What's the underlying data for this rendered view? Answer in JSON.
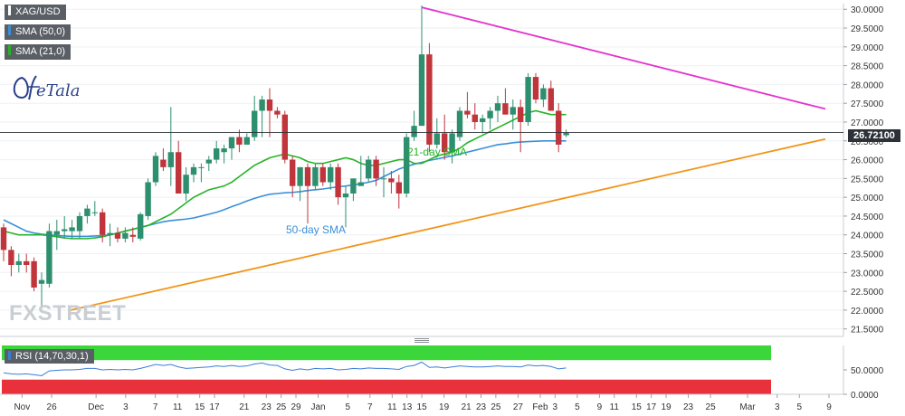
{
  "legend": {
    "symbol": "XAG/USD",
    "sma50": "SMA (50,0)",
    "sma21": "SMA (21,0)",
    "sma50_color": "#3b8fd8",
    "sma21_color": "#27b327",
    "symbol_color": "#ffffff"
  },
  "brand": {
    "logo": "FXStreet",
    "logo_partner": "OfeTala"
  },
  "watermark_text": "FXSTREET",
  "price_tag": "26.72100",
  "rsi_label": "RSI (14,70,30,1)",
  "colors": {
    "bull": "#2e8f6e",
    "bear": "#c0343b",
    "resistance": "#e333cf",
    "support": "#f29418",
    "rsi_line": "#3b7dd8",
    "rsi_overbought": "#3ad63a",
    "rsi_oversold": "#e8313a"
  },
  "chart_data": {
    "type": "candlestick",
    "symbol": "XAG/USD",
    "ylim": [
      21.3,
      30.15
    ],
    "y_ticks": [
      "30.0000",
      "29.5000",
      "29.0000",
      "28.5000",
      "28.0000",
      "27.5000",
      "27.0000",
      "26.5000",
      "26.0000",
      "25.5000",
      "25.0000",
      "24.5000",
      "24.0000",
      "23.5000",
      "23.0000",
      "22.5000",
      "22.0000",
      "21.5000"
    ],
    "x_labels": [
      "Nov",
      "26",
      "Dec",
      "3",
      "7",
      "11",
      "15",
      "17",
      "21",
      "23",
      "25",
      "29",
      "Jan",
      "5",
      "7",
      "11",
      "13",
      "15",
      "19",
      "21",
      "23",
      "25",
      "27",
      "Feb",
      "3",
      "5",
      "9",
      "11",
      "15",
      "17",
      "19",
      "23",
      "25",
      "Mar",
      "3",
      "5",
      "9"
    ],
    "current_price": 26.721,
    "candles": [
      {
        "o": 24.2,
        "h": 24.3,
        "l": 23.3,
        "c": 23.6
      },
      {
        "o": 23.6,
        "h": 23.7,
        "l": 22.9,
        "c": 23.2
      },
      {
        "o": 23.2,
        "h": 23.5,
        "l": 23.0,
        "c": 23.3
      },
      {
        "o": 23.3,
        "h": 23.5,
        "l": 23.0,
        "c": 23.2
      },
      {
        "o": 23.3,
        "h": 23.4,
        "l": 22.5,
        "c": 22.6
      },
      {
        "o": 22.7,
        "h": 23.0,
        "l": 22.0,
        "c": 22.8
      },
      {
        "o": 22.7,
        "h": 24.3,
        "l": 22.6,
        "c": 24.1
      },
      {
        "o": 24.0,
        "h": 24.4,
        "l": 23.6,
        "c": 24.1
      },
      {
        "o": 24.1,
        "h": 24.5,
        "l": 23.9,
        "c": 24.15
      },
      {
        "o": 24.1,
        "h": 24.4,
        "l": 23.9,
        "c": 24.2
      },
      {
        "o": 24.1,
        "h": 24.6,
        "l": 23.9,
        "c": 24.5
      },
      {
        "o": 24.5,
        "h": 24.8,
        "l": 24.3,
        "c": 24.7
      },
      {
        "o": 24.6,
        "h": 24.9,
        "l": 24.5,
        "c": 24.6
      },
      {
        "o": 24.6,
        "h": 24.7,
        "l": 23.8,
        "c": 24.0
      },
      {
        "o": 24.0,
        "h": 24.3,
        "l": 23.7,
        "c": 24.05
      },
      {
        "o": 24.05,
        "h": 24.2,
        "l": 23.8,
        "c": 23.9
      },
      {
        "o": 23.9,
        "h": 24.2,
        "l": 23.8,
        "c": 24.05
      },
      {
        "o": 24.0,
        "h": 24.2,
        "l": 23.8,
        "c": 23.95
      },
      {
        "o": 23.9,
        "h": 24.6,
        "l": 23.85,
        "c": 24.55
      },
      {
        "o": 24.5,
        "h": 25.5,
        "l": 24.4,
        "c": 25.4
      },
      {
        "o": 25.4,
        "h": 26.2,
        "l": 25.3,
        "c": 26.1
      },
      {
        "o": 26.0,
        "h": 26.3,
        "l": 25.7,
        "c": 25.8
      },
      {
        "o": 25.8,
        "h": 27.4,
        "l": 25.3,
        "c": 26.2
      },
      {
        "o": 26.2,
        "h": 26.5,
        "l": 25.1,
        "c": 25.1
      },
      {
        "o": 25.1,
        "h": 25.8,
        "l": 24.9,
        "c": 25.6
      },
      {
        "o": 25.6,
        "h": 25.9,
        "l": 25.4,
        "c": 25.8
      },
      {
        "o": 25.8,
        "h": 25.9,
        "l": 25.4,
        "c": 25.8
      },
      {
        "o": 25.9,
        "h": 26.1,
        "l": 25.7,
        "c": 26.0
      },
      {
        "o": 26.0,
        "h": 26.5,
        "l": 25.9,
        "c": 26.3
      },
      {
        "o": 26.2,
        "h": 26.4,
        "l": 25.9,
        "c": 26.3
      },
      {
        "o": 26.3,
        "h": 26.6,
        "l": 26.0,
        "c": 26.6
      },
      {
        "o": 26.6,
        "h": 26.8,
        "l": 26.2,
        "c": 26.4
      },
      {
        "o": 26.4,
        "h": 26.7,
        "l": 26.4,
        "c": 26.6
      },
      {
        "o": 26.6,
        "h": 27.7,
        "l": 26.5,
        "c": 27.3
      },
      {
        "o": 27.3,
        "h": 27.7,
        "l": 26.6,
        "c": 27.6
      },
      {
        "o": 27.6,
        "h": 27.9,
        "l": 26.6,
        "c": 27.3
      },
      {
        "o": 27.3,
        "h": 27.4,
        "l": 27.1,
        "c": 27.2
      },
      {
        "o": 27.2,
        "h": 27.3,
        "l": 25.9,
        "c": 26.0
      },
      {
        "o": 26.0,
        "h": 26.1,
        "l": 25.0,
        "c": 25.3
      },
      {
        "o": 25.3,
        "h": 25.8,
        "l": 24.9,
        "c": 25.8
      },
      {
        "o": 25.8,
        "h": 25.9,
        "l": 24.3,
        "c": 25.3
      },
      {
        "o": 25.3,
        "h": 25.9,
        "l": 25.2,
        "c": 25.8
      },
      {
        "o": 25.8,
        "h": 25.9,
        "l": 25.3,
        "c": 25.4
      },
      {
        "o": 25.4,
        "h": 25.9,
        "l": 25.2,
        "c": 25.8
      },
      {
        "o": 25.8,
        "h": 25.9,
        "l": 24.8,
        "c": 25.0
      },
      {
        "o": 25.0,
        "h": 25.3,
        "l": 24.2,
        "c": 25.1
      },
      {
        "o": 25.1,
        "h": 25.5,
        "l": 24.9,
        "c": 25.5
      },
      {
        "o": 25.3,
        "h": 26.1,
        "l": 25.3,
        "c": 25.4
      },
      {
        "o": 25.5,
        "h": 26.1,
        "l": 25.4,
        "c": 26.0
      },
      {
        "o": 26.0,
        "h": 26.1,
        "l": 25.3,
        "c": 25.5
      },
      {
        "o": 25.5,
        "h": 25.8,
        "l": 25.0,
        "c": 25.5
      },
      {
        "o": 25.5,
        "h": 25.7,
        "l": 25.1,
        "c": 25.4
      },
      {
        "o": 25.4,
        "h": 25.6,
        "l": 24.7,
        "c": 25.1
      },
      {
        "o": 25.1,
        "h": 26.7,
        "l": 25.0,
        "c": 26.6
      },
      {
        "o": 26.6,
        "h": 27.3,
        "l": 26.5,
        "c": 26.9
      },
      {
        "o": 26.9,
        "h": 30.1,
        "l": 26.9,
        "c": 28.8
      },
      {
        "o": 28.8,
        "h": 29.1,
        "l": 26.2,
        "c": 26.4
      },
      {
        "o": 26.4,
        "h": 27.1,
        "l": 26.3,
        "c": 26.7
      },
      {
        "o": 26.7,
        "h": 27.2,
        "l": 26.0,
        "c": 26.2
      },
      {
        "o": 26.2,
        "h": 26.8,
        "l": 25.9,
        "c": 26.7
      },
      {
        "o": 26.6,
        "h": 27.4,
        "l": 26.5,
        "c": 27.3
      },
      {
        "o": 27.3,
        "h": 27.8,
        "l": 27.1,
        "c": 27.2
      },
      {
        "o": 27.2,
        "h": 27.5,
        "l": 26.8,
        "c": 27.0
      },
      {
        "o": 27.0,
        "h": 27.2,
        "l": 26.7,
        "c": 27.1
      },
      {
        "o": 27.1,
        "h": 27.4,
        "l": 26.8,
        "c": 27.3
      },
      {
        "o": 27.3,
        "h": 27.7,
        "l": 27.0,
        "c": 27.5
      },
      {
        "o": 27.5,
        "h": 27.9,
        "l": 27.2,
        "c": 27.2
      },
      {
        "o": 27.2,
        "h": 27.6,
        "l": 26.8,
        "c": 27.4
      },
      {
        "o": 27.4,
        "h": 27.6,
        "l": 26.2,
        "c": 27.0
      },
      {
        "o": 27.0,
        "h": 28.3,
        "l": 26.9,
        "c": 28.2
      },
      {
        "o": 28.2,
        "h": 28.3,
        "l": 27.5,
        "c": 27.6
      },
      {
        "o": 27.6,
        "h": 28.0,
        "l": 27.4,
        "c": 27.9
      },
      {
        "o": 27.9,
        "h": 28.1,
        "l": 27.3,
        "c": 27.3
      },
      {
        "o": 27.3,
        "h": 27.5,
        "l": 26.2,
        "c": 26.4
      },
      {
        "o": 26.65,
        "h": 26.8,
        "l": 26.6,
        "c": 26.72
      }
    ],
    "sma21": [
      24.1,
      24.05,
      24.0,
      24.0,
      24.0,
      24.0,
      23.98,
      23.95,
      23.92,
      23.9,
      23.9,
      23.9,
      23.92,
      23.95,
      24.0,
      24.05,
      24.1,
      24.15,
      24.2,
      24.25,
      24.35,
      24.45,
      24.55,
      24.7,
      24.85,
      25.0,
      25.1,
      25.2,
      25.25,
      25.3,
      25.4,
      25.55,
      25.7,
      25.85,
      25.95,
      26.05,
      26.1,
      26.15,
      26.1,
      26.05,
      25.95,
      25.9,
      25.9,
      25.95,
      26.0,
      26.05,
      26.0,
      25.9,
      25.85,
      25.85,
      25.9,
      25.95,
      26.0,
      26.0,
      25.9,
      25.9,
      26.0,
      26.1,
      26.15,
      26.2,
      26.3,
      26.45,
      26.55,
      26.65,
      26.75,
      26.85,
      26.95,
      27.05,
      27.15,
      27.25,
      27.3,
      27.25,
      27.2,
      27.2,
      27.2
    ],
    "sma50": [
      24.4,
      24.3,
      24.2,
      24.1,
      24.05,
      24.02,
      24.0,
      23.98,
      23.97,
      23.96,
      23.96,
      23.96,
      23.97,
      23.98,
      24.0,
      24.05,
      24.1,
      24.15,
      24.2,
      24.25,
      24.3,
      24.35,
      24.38,
      24.4,
      24.42,
      24.45,
      24.5,
      24.55,
      24.6,
      24.67,
      24.75,
      24.82,
      24.9,
      24.97,
      25.03,
      25.08,
      25.1,
      25.12,
      25.13,
      25.15,
      25.18,
      25.2,
      25.22,
      25.25,
      25.28,
      25.3,
      25.33,
      25.36,
      25.4,
      25.45,
      25.55,
      25.65,
      25.75,
      25.82,
      25.88,
      25.93,
      25.98,
      26.02,
      26.06,
      26.1,
      26.15,
      26.2,
      26.25,
      26.3,
      26.35,
      26.4,
      26.42,
      26.45,
      26.47,
      26.48,
      26.49,
      26.5,
      26.5,
      26.5,
      26.5
    ],
    "trendlines": {
      "resistance": {
        "start": 30.05,
        "end": 27.35
      },
      "support": {
        "start": 22.0,
        "end": 26.55
      }
    },
    "annotations": [
      "21-day SMA",
      "50-day SMA"
    ],
    "rsi": {
      "ylim": [
        0,
        100
      ],
      "y_ticks": [
        "50.0000",
        "0.0000"
      ],
      "overbought": 70,
      "oversold": 30,
      "values": [
        44,
        42,
        41,
        42,
        40,
        38,
        48,
        49,
        50,
        50,
        51,
        53,
        53,
        50,
        51,
        50,
        51,
        50,
        53,
        57,
        61,
        59,
        61,
        56,
        53,
        54,
        55,
        56,
        58,
        57,
        59,
        57,
        58,
        62,
        64,
        60,
        59,
        52,
        49,
        52,
        50,
        53,
        52,
        53,
        50,
        51,
        53,
        52,
        54,
        53,
        53,
        52,
        51,
        57,
        59,
        66,
        55,
        56,
        54,
        56,
        58,
        57,
        56,
        56,
        57,
        58,
        57,
        57,
        56,
        60,
        58,
        59,
        57,
        52,
        54
      ]
    }
  }
}
